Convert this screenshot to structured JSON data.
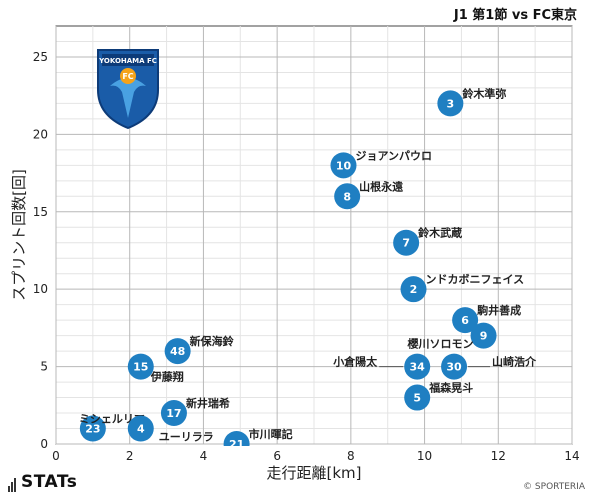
{
  "header": {
    "match": "J1 第1節 vs FC東京"
  },
  "team_logo": {
    "name": "YOKOHAMA FC",
    "badge_text": "FC",
    "primary_color": "#1a5ca8",
    "accent_color": "#f5a31a"
  },
  "footer": {
    "brand": "STATs",
    "credit": "© SPORTERIA"
  },
  "chart_data": {
    "type": "scatter",
    "xlabel": "走行距離[km]",
    "ylabel": "スプリント回数[回]",
    "xlim": [
      0,
      14
    ],
    "ylim": [
      0,
      27
    ],
    "x_ticks": [
      0,
      2,
      4,
      6,
      8,
      10,
      12,
      14
    ],
    "y_ticks": [
      0,
      5,
      10,
      15,
      20,
      25
    ],
    "grid": true,
    "marker_color": "#1f7fc2",
    "points": [
      {
        "number": "3",
        "name": "鈴木準弥",
        "x": 10.7,
        "y": 22
      },
      {
        "number": "10",
        "name": "ジョアンパウロ",
        "x": 7.8,
        "y": 18
      },
      {
        "number": "8",
        "name": "山根永遠",
        "x": 7.9,
        "y": 16
      },
      {
        "number": "7",
        "name": "鈴木武蔵",
        "x": 9.5,
        "y": 13
      },
      {
        "number": "2",
        "name": "ンドカボニフェイス",
        "x": 9.7,
        "y": 10
      },
      {
        "number": "6",
        "name": "駒井善成",
        "x": 11.1,
        "y": 8
      },
      {
        "number": "9",
        "name": "櫻川ソロモン",
        "x": 11.6,
        "y": 7
      },
      {
        "number": "48",
        "name": "新保海鈴",
        "x": 3.3,
        "y": 6
      },
      {
        "number": "15",
        "name": "伊藤翔",
        "x": 2.3,
        "y": 5
      },
      {
        "number": "34",
        "name": "小倉陽太",
        "x": 9.8,
        "y": 5
      },
      {
        "number": "30",
        "name": "山崎浩介",
        "x": 10.8,
        "y": 5
      },
      {
        "number": "5",
        "name": "福森晃斗",
        "x": 9.8,
        "y": 3
      },
      {
        "number": "17",
        "name": "新井瑞希",
        "x": 3.2,
        "y": 2
      },
      {
        "number": "23",
        "name": "ミシェルリマ",
        "x": 1.0,
        "y": 1
      },
      {
        "number": "4",
        "name": "ユーリララ",
        "x": 2.3,
        "y": 1
      },
      {
        "number": "21",
        "name": "市川暉記",
        "x": 4.9,
        "y": 0
      }
    ]
  }
}
